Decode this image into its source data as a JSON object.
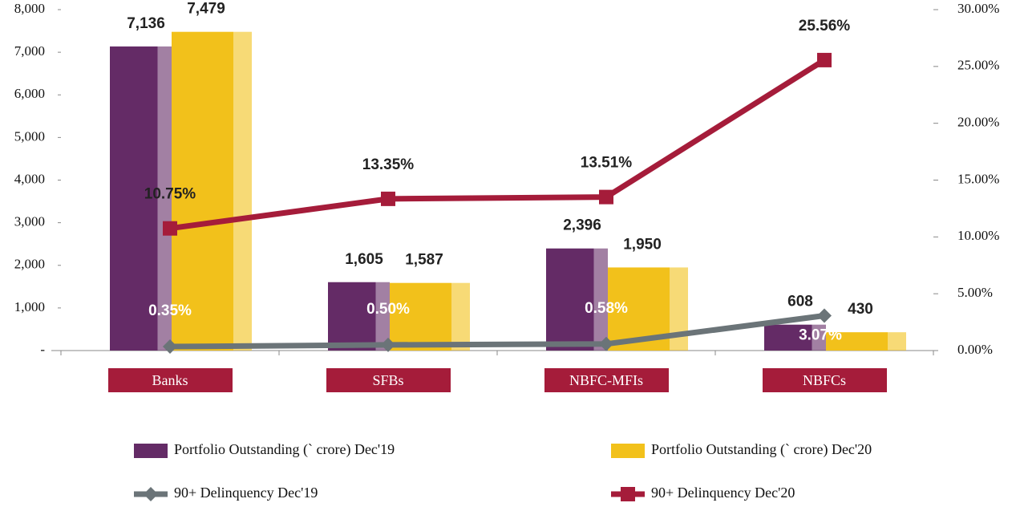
{
  "chart_data": {
    "type": "bar_line",
    "categories": [
      "Banks",
      "SFBs",
      "NBFC-MFIs",
      "NBFCs"
    ],
    "series": [
      {
        "name": "Portfolio Outstanding (` crore) Dec'19",
        "type": "bar",
        "color": "#642b66",
        "values": [
          7136,
          1605,
          2396,
          608
        ],
        "value_labels": [
          "7,136",
          "1,605",
          "2,396",
          "608"
        ]
      },
      {
        "name": "Portfolio Outstanding (` crore) Dec'20",
        "type": "bar",
        "color": "#f2c11b",
        "values": [
          7479,
          1587,
          1950,
          430
        ],
        "value_labels": [
          "7,479",
          "1,587",
          "1,950",
          "430"
        ]
      },
      {
        "name": "90+ Delinquency Dec'19",
        "type": "line",
        "axis": "y2",
        "marker": "diamond",
        "color": "#6b7478",
        "values": [
          0.35,
          0.5,
          0.58,
          3.07
        ],
        "value_labels": [
          "0.35%",
          "0.50%",
          "0.58%",
          "3.07%"
        ]
      },
      {
        "name": "90+ Delinquency Dec'20",
        "type": "line",
        "axis": "y2",
        "marker": "square",
        "color": "#a51c3a",
        "values": [
          10.75,
          13.35,
          13.51,
          25.56
        ],
        "value_labels": [
          "10.75%",
          "13.35%",
          "13.51%",
          "25.56%"
        ]
      }
    ],
    "ylim": [
      0,
      8000
    ],
    "yticks": [
      {
        "value": 0,
        "label": "-"
      },
      {
        "value": 1000,
        "label": "1,000"
      },
      {
        "value": 2000,
        "label": "2,000"
      },
      {
        "value": 3000,
        "label": "3,000"
      },
      {
        "value": 4000,
        "label": "4,000"
      },
      {
        "value": 5000,
        "label": "5,000"
      },
      {
        "value": 6000,
        "label": "6,000"
      },
      {
        "value": 7000,
        "label": "7,000"
      },
      {
        "value": 8000,
        "label": "8,000"
      }
    ],
    "y2lim": [
      0,
      30
    ],
    "y2ticks": [
      {
        "value": 0,
        "label": "0.00%"
      },
      {
        "value": 5,
        "label": "5.00%"
      },
      {
        "value": 10,
        "label": "10.00%"
      },
      {
        "value": 15,
        "label": "15.00%"
      },
      {
        "value": 20,
        "label": "20.00%"
      },
      {
        "value": 25,
        "label": "25.00%"
      },
      {
        "value": 30,
        "label": "30.00%"
      }
    ],
    "legend": "bottom"
  }
}
